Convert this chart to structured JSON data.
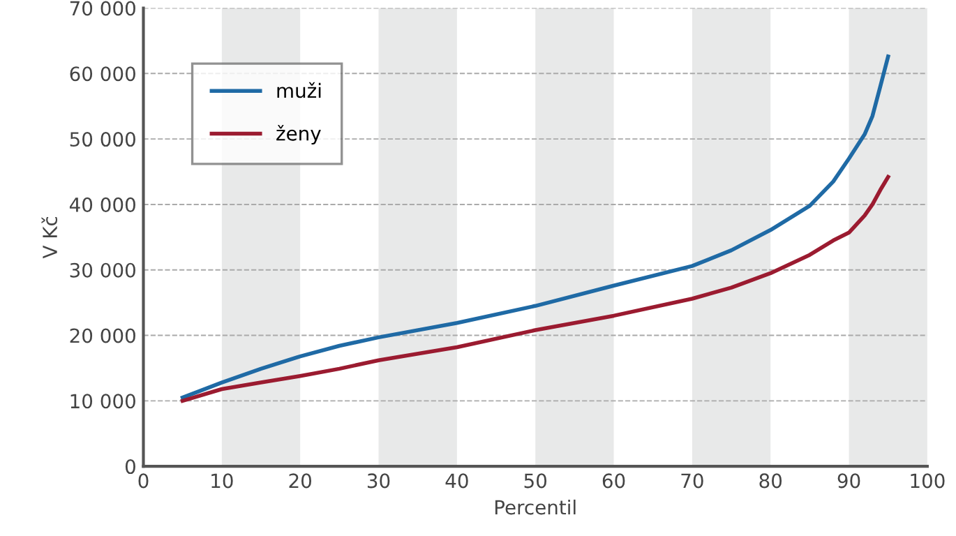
{
  "chart_data": {
    "type": "line",
    "xlabel": "Percentil",
    "ylabel": "V Kč",
    "x": [
      5,
      10,
      15,
      20,
      25,
      30,
      40,
      50,
      60,
      70,
      75,
      80,
      85,
      88,
      90,
      92,
      93,
      94,
      95
    ],
    "series": [
      {
        "name": "muži",
        "color": "#1f6aa5",
        "values": [
          10500,
          12800,
          14900,
          16800,
          18400,
          19700,
          21900,
          24500,
          27600,
          30600,
          33000,
          36100,
          39800,
          43500,
          47000,
          50700,
          53500,
          58000,
          62600
        ]
      },
      {
        "name": "ženy",
        "color": "#9b1b30",
        "values": [
          10000,
          11800,
          12800,
          13800,
          14900,
          16200,
          18200,
          20800,
          23000,
          25600,
          27300,
          29500,
          32300,
          34500,
          35700,
          38300,
          40000,
          42200,
          44200
        ]
      }
    ],
    "xlim": [
      0,
      100
    ],
    "xticks": [
      0,
      10,
      20,
      30,
      40,
      50,
      60,
      70,
      80,
      90,
      100
    ],
    "ylim": [
      0,
      70000
    ],
    "yticks": [
      {
        "value": 0,
        "label": "0"
      },
      {
        "value": 10000,
        "label": "10 000"
      },
      {
        "value": 20000,
        "label": "20 000"
      },
      {
        "value": 30000,
        "label": "30 000"
      },
      {
        "value": 40000,
        "label": "40 000"
      },
      {
        "value": 50000,
        "label": "50 000"
      },
      {
        "value": 60000,
        "label": "60 000"
      },
      {
        "value": 70000,
        "label": "70 000"
      }
    ],
    "bands": [
      {
        "axis": "x",
        "from": 10,
        "to": 20,
        "color": "#e8e9e9"
      },
      {
        "axis": "x",
        "from": 30,
        "to": 40,
        "color": "#e8e9e9"
      },
      {
        "axis": "x",
        "from": 50,
        "to": 60,
        "color": "#e8e9e9"
      },
      {
        "axis": "x",
        "from": 70,
        "to": 80,
        "color": "#e8e9e9"
      },
      {
        "axis": "x",
        "from": 90,
        "to": 100,
        "color": "#e8e9e9"
      }
    ],
    "grid": "y",
    "legend": "top left",
    "line_style": "solid",
    "marker": "none"
  }
}
